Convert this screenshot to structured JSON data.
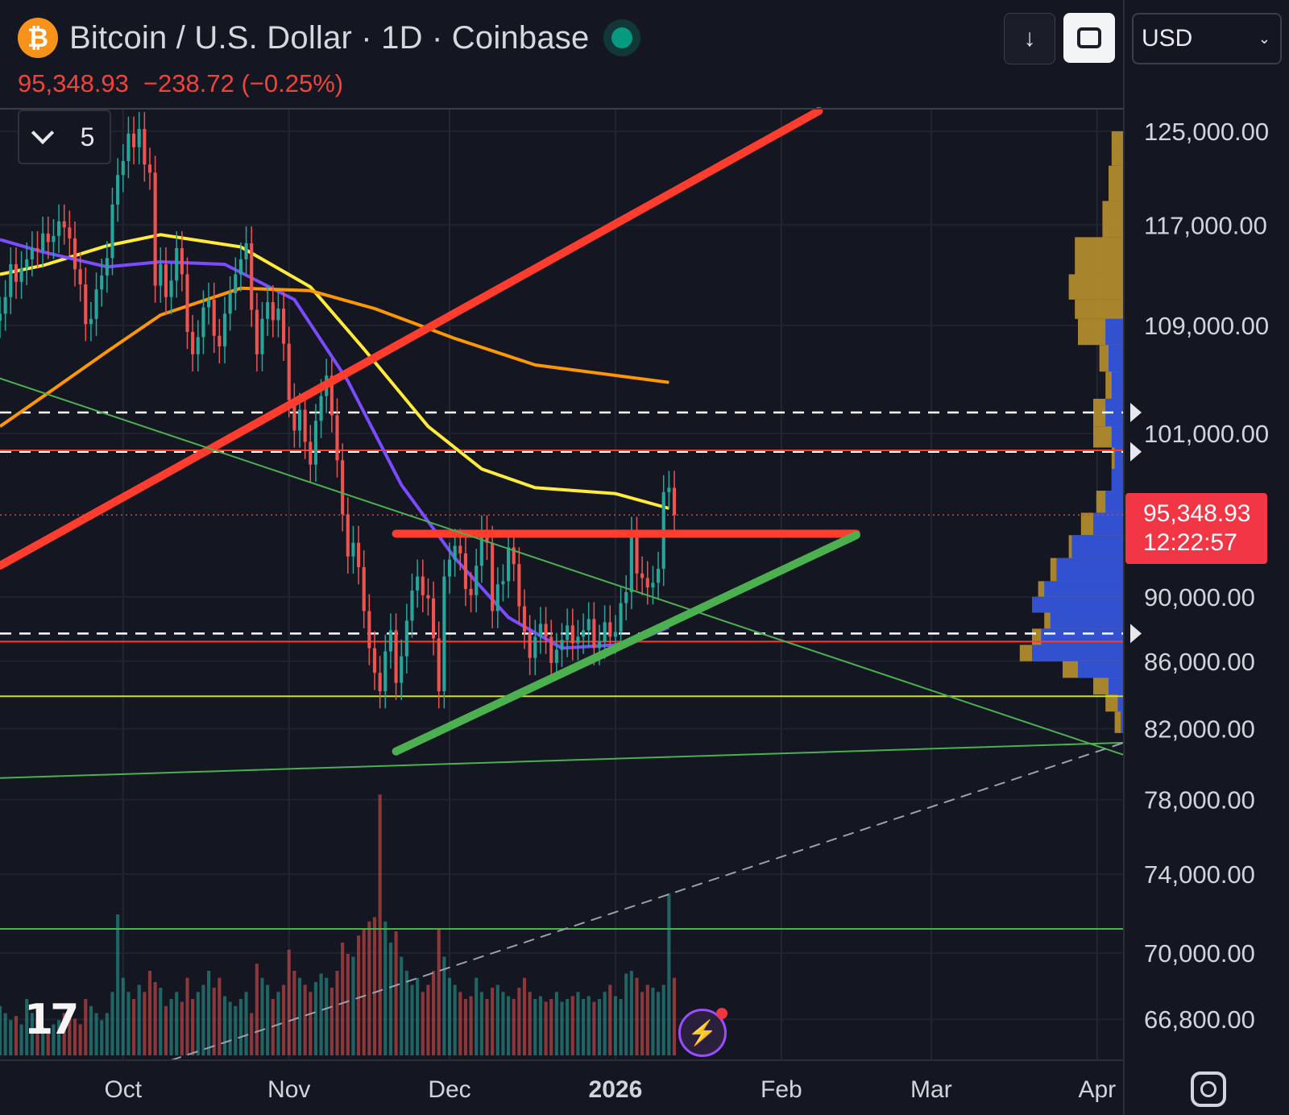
{
  "header": {
    "title": "Bitcoin / U.S. Dollar · 1D · Coinbase",
    "icon": "bitcoin-icon",
    "last_price": "95,348.93",
    "change": "−238.72 (−0.25%)"
  },
  "toolbar": {
    "download_icon": "download-icon",
    "fullscreen_icon": "fullscreen-icon",
    "currency": "USD"
  },
  "indicators": {
    "count": "5"
  },
  "price_tag": {
    "price": "95,348.93",
    "countdown": "12:22:57"
  },
  "logo": "17",
  "colors": {
    "background": "#141722",
    "up": "#26a69a",
    "down": "#ef5350",
    "ma_yellow": "#ffeb3b",
    "ma_purple": "#7b4cff",
    "ma_orange": "#ff9800",
    "trend_green": "#4caf50",
    "resistance_red": "#ff3d2e",
    "vp_gold": "#b8902d",
    "vp_blue": "#2a4ed9",
    "price_label": "#f23645"
  },
  "chart_data": {
    "type": "candlestick",
    "y_scale": "log",
    "ylim": [
      64900,
      127000
    ],
    "xlim": [
      "2025-09-08",
      "2026-04-06"
    ],
    "y_ticks": [
      "125,000.00",
      "117,000.00",
      "109,000.00",
      "101,000.00",
      "95,348.93",
      "90,000.00",
      "86,000.00",
      "82,000.00",
      "78,000.00",
      "74,000.00",
      "70,000.00",
      "66,800.00"
    ],
    "x_ticks": [
      {
        "date": "2025-10-01",
        "label": "Oct",
        "bold": false
      },
      {
        "date": "2025-11-01",
        "label": "Nov",
        "bold": false
      },
      {
        "date": "2025-12-01",
        "label": "Dec",
        "bold": false
      },
      {
        "date": "2026-01-01",
        "label": "2026",
        "bold": true
      },
      {
        "date": "2026-02-01",
        "label": "Feb",
        "bold": false
      },
      {
        "date": "2026-03-01",
        "label": "Mar",
        "bold": false
      },
      {
        "date": "2026-04-01",
        "label": "Apr",
        "bold": false
      }
    ],
    "closes": [
      109900,
      111200,
      113800,
      112400,
      113500,
      114200,
      115100,
      114900,
      116300,
      115600,
      116100,
      117300,
      116800,
      115900,
      113400,
      112200,
      109100,
      109500,
      111800,
      112900,
      114300,
      118700,
      121200,
      122400,
      124800,
      123600,
      125200,
      122100,
      121400,
      112100,
      113800,
      111200,
      112500,
      115100,
      113000,
      108500,
      106800,
      108100,
      110400,
      111000,
      108200,
      107400,
      109900,
      111500,
      113000,
      114200,
      115500,
      110200,
      106800,
      109500,
      110800,
      109400,
      110300,
      107600,
      103400,
      101200,
      102700,
      100400,
      98800,
      101900,
      103700,
      105200,
      102300,
      99100,
      95400,
      92600,
      93500,
      91900,
      89100,
      86800,
      85300,
      84200,
      86600,
      87900,
      84700,
      86300,
      88500,
      90400,
      91300,
      90100,
      89900,
      87400,
      84200,
      91300,
      92400,
      93300,
      92800,
      90500,
      90100,
      92000,
      94200,
      93500,
      89100,
      90800,
      91000,
      93200,
      92100,
      89400,
      87800,
      86200,
      87500,
      88300,
      87500,
      85900,
      86700,
      87300,
      88200,
      87100,
      87500,
      87900,
      88600,
      86800,
      87200,
      88400,
      87500,
      87800,
      89600,
      90300,
      94100,
      91500,
      91200,
      90600,
      90900,
      91800,
      96900,
      97200,
      95348.93
    ],
    "series": [
      {
        "name": "",
        "color": "#ffeb3b",
        "values": [
          [
            0,
            113000
          ],
          [
            8,
            113700
          ],
          [
            20,
            115300
          ],
          [
            30,
            116200
          ],
          [
            45,
            115200
          ],
          [
            58,
            112000
          ],
          [
            68,
            107200
          ],
          [
            80,
            101500
          ],
          [
            90,
            98500
          ],
          [
            100,
            97200
          ],
          [
            115,
            96800
          ],
          [
            125,
            95800
          ]
        ]
      },
      {
        "name": "",
        "color": "#7b4cff",
        "values": [
          [
            0,
            115800
          ],
          [
            8,
            114800
          ],
          [
            20,
            113600
          ],
          [
            30,
            114000
          ],
          [
            42,
            113800
          ],
          [
            55,
            111000
          ],
          [
            65,
            104800
          ],
          [
            75,
            97400
          ],
          [
            85,
            92500
          ],
          [
            95,
            88700
          ],
          [
            105,
            86800
          ],
          [
            115,
            87000
          ],
          [
            120,
            87400
          ],
          [
            125,
            88100
          ]
        ]
      },
      {
        "name": "",
        "color": "#ff9800",
        "values": [
          [
            0,
            101500
          ],
          [
            10,
            104200
          ],
          [
            20,
            107000
          ],
          [
            30,
            109800
          ],
          [
            45,
            111900
          ],
          [
            58,
            111700
          ],
          [
            70,
            110300
          ],
          [
            85,
            108000
          ],
          [
            100,
            106000
          ],
          [
            125,
            104700
          ]
        ]
      }
    ],
    "drawings": {
      "horizontal_levels": [
        {
          "price": 102500,
          "color": "#ffffff",
          "style": "dashed"
        },
        {
          "price": 99700,
          "color": "#ffffff",
          "style": "dashed"
        },
        {
          "price": 99800,
          "color": "#ff3d2e",
          "style": "solid"
        },
        {
          "price": 87700,
          "color": "#ffffff",
          "style": "dashed"
        },
        {
          "price": 87200,
          "color": "#ff3d2e",
          "style": "solid"
        },
        {
          "price": 83900,
          "color": "#cddc39",
          "style": "solid"
        },
        {
          "price": 71200,
          "color": "#4caf50",
          "style": "solid"
        }
      ],
      "trendlines": [
        {
          "from": [
            "2025-09-08",
            92000
          ],
          "to": [
            "2026-02-08",
            126800
          ],
          "color": "#ff3d2e",
          "width": "thick"
        },
        {
          "from": [
            "2025-11-21",
            94100
          ],
          "to": [
            "2026-02-15",
            94100
          ],
          "color": "#ff3d2e",
          "width": "thick"
        },
        {
          "from": [
            "2025-11-21",
            80700
          ],
          "to": [
            "2026-02-15",
            94000
          ],
          "color": "#4caf50",
          "width": "thick"
        },
        {
          "from": [
            "2025-09-08",
            105000
          ],
          "to": [
            "2026-04-06",
            80500
          ],
          "color": "#4caf50",
          "width": "thin"
        },
        {
          "from": [
            "2025-09-08",
            79200
          ],
          "to": [
            "2026-04-06",
            81200
          ],
          "color": "#4caf50",
          "width": "thin"
        },
        {
          "from": [
            "2025-10-10",
            64900
          ],
          "to": [
            "2026-04-06",
            81200
          ],
          "color": "#9aa0ad",
          "width": "dashed"
        }
      ]
    },
    "volume_profile": [
      [
        125000,
        0.04,
        0
      ],
      [
        122000,
        0.05,
        0
      ],
      [
        119000,
        0.07,
        0
      ],
      [
        116000,
        0.16,
        0
      ],
      [
        113000,
        0.18,
        0
      ],
      [
        111000,
        0.16,
        0
      ],
      [
        109500,
        0.15,
        0.06
      ],
      [
        107500,
        0.08,
        0.05
      ],
      [
        105500,
        0.06,
        0.04
      ],
      [
        103500,
        0.1,
        0.06
      ],
      [
        101500,
        0.1,
        0.04
      ],
      [
        100000,
        0.04,
        0.03
      ],
      [
        98500,
        0.04,
        0.04
      ],
      [
        97000,
        0.09,
        0.06
      ],
      [
        95500,
        0.14,
        0.1
      ],
      [
        94000,
        0.18,
        0.17
      ],
      [
        92500,
        0.24,
        0.22
      ],
      [
        91000,
        0.28,
        0.26
      ],
      [
        90000,
        0.3,
        0.3
      ],
      [
        89000,
        0.26,
        0.24
      ],
      [
        88000,
        0.3,
        0.27
      ],
      [
        87000,
        0.34,
        0.3
      ],
      [
        86000,
        0.2,
        0.15
      ],
      [
        85000,
        0.1,
        0.05
      ],
      [
        84000,
        0.06,
        0.02
      ],
      [
        83000,
        0.03,
        0.01
      ]
    ],
    "volume": {
      "spike_indices": [
        22,
        71,
        124
      ],
      "values_relative": [
        0.35,
        0.3,
        0.25,
        0.28,
        0.22,
        0.4,
        0.3,
        0.25,
        0.2,
        0.18,
        0.22,
        0.25,
        0.3,
        0.28,
        0.26,
        0.22,
        0.4,
        0.35,
        0.3,
        0.25,
        0.3,
        0.45,
        1.0,
        0.55,
        0.45,
        0.4,
        0.5,
        0.45,
        0.6,
        0.52,
        0.48,
        0.35,
        0.4,
        0.45,
        0.38,
        0.55,
        0.4,
        0.45,
        0.5,
        0.6,
        0.48,
        0.55,
        0.42,
        0.38,
        0.35,
        0.4,
        0.45,
        0.3,
        0.65,
        0.55,
        0.5,
        0.4,
        0.45,
        0.5,
        0.75,
        0.6,
        0.55,
        0.5,
        0.45,
        0.52,
        0.58,
        0.55,
        0.48,
        0.6,
        0.8,
        0.72,
        0.7,
        0.85,
        0.9,
        0.95,
        0.98,
        1.85,
        0.95,
        0.8,
        0.88,
        0.7,
        0.6,
        0.5,
        0.55,
        0.45,
        0.5,
        0.6,
        0.9,
        0.7,
        0.55,
        0.5,
        0.45,
        0.4,
        0.42,
        0.55,
        0.45,
        0.4,
        0.48,
        0.5,
        0.45,
        0.42,
        0.4,
        0.48,
        0.55,
        0.45,
        0.4,
        0.42,
        0.38,
        0.4,
        0.45,
        0.38,
        0.4,
        0.42,
        0.45,
        0.4,
        0.42,
        0.38,
        0.4,
        0.45,
        0.5,
        0.42,
        0.4,
        0.58,
        0.6,
        0.55,
        0.45,
        0.5,
        0.48,
        0.45,
        0.5,
        1.15,
        0.55
      ]
    }
  }
}
